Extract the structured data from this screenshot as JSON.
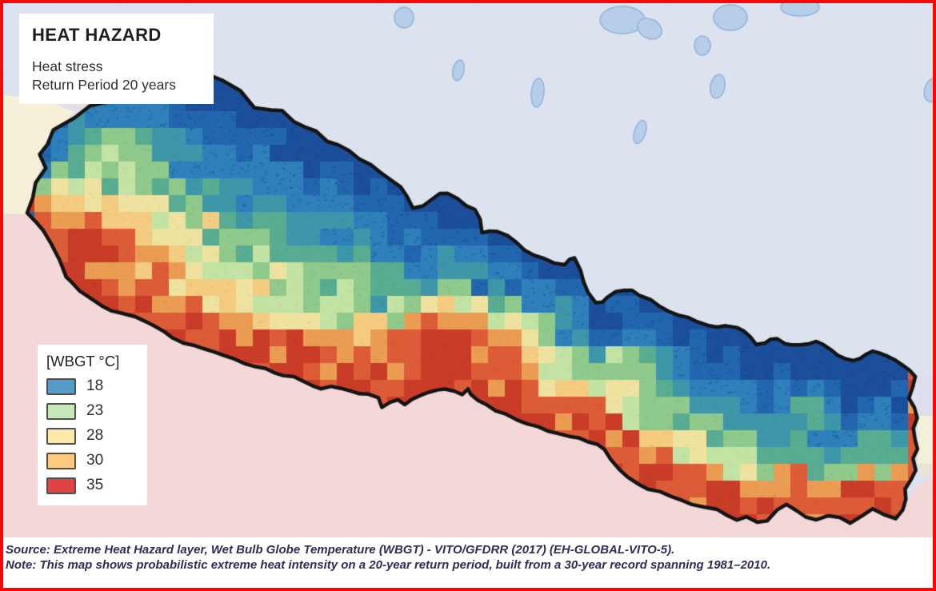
{
  "title_box": {
    "title": "HEAT HAZARD",
    "subtitle_line1": "Heat stress",
    "subtitle_line2": "Return Period 20 years"
  },
  "legend": {
    "title": "[WBGT °C]",
    "items": [
      {
        "label": "18",
        "color": "#559bc8"
      },
      {
        "label": "23",
        "color": "#c9e8b9"
      },
      {
        "label": "28",
        "color": "#fdeaaa"
      },
      {
        "label": "30",
        "color": "#fbc980"
      },
      {
        "label": "35",
        "color": "#e04343"
      }
    ]
  },
  "caption": {
    "source": "Source: Extreme Heat Hazard layer, Wet Bulb Globe Temperature (WBGT) - VITO/GFDRR (2017) (EH-GLOBAL-VITO-5).",
    "note": "Note: This map shows probabilistic extreme heat intensity on a 20-year return period, built from a 30-year record spanning 1981–2010."
  },
  "map": {
    "frame_color": "#fb0505",
    "background_color": "#dce3ee",
    "outside_south_color": "#f3d8d7",
    "outside_west_color": "#f6f0d9",
    "lake_fill_color": "#b7cee9",
    "lake_stroke_color": "#93b2da",
    "country_border_color": "#141414",
    "caption_strip_color": "#ffffff",
    "palette": [
      {
        "max": 0.14,
        "color": "#1c4f9b"
      },
      {
        "max": 0.26,
        "color": "#2366b0"
      },
      {
        "max": 0.36,
        "color": "#2f80ba"
      },
      {
        "max": 0.44,
        "color": "#3e96a9"
      },
      {
        "max": 0.52,
        "color": "#58ac92"
      },
      {
        "max": 0.6,
        "color": "#8fc98b"
      },
      {
        "max": 0.67,
        "color": "#c3e3a5"
      },
      {
        "max": 0.74,
        "color": "#efe2a0"
      },
      {
        "max": 0.81,
        "color": "#f3cb81"
      },
      {
        "max": 0.88,
        "color": "#eb9c53"
      },
      {
        "max": 0.95,
        "color": "#dc5c37"
      },
      {
        "max": 9,
        "color": "#c93c28"
      }
    ]
  }
}
